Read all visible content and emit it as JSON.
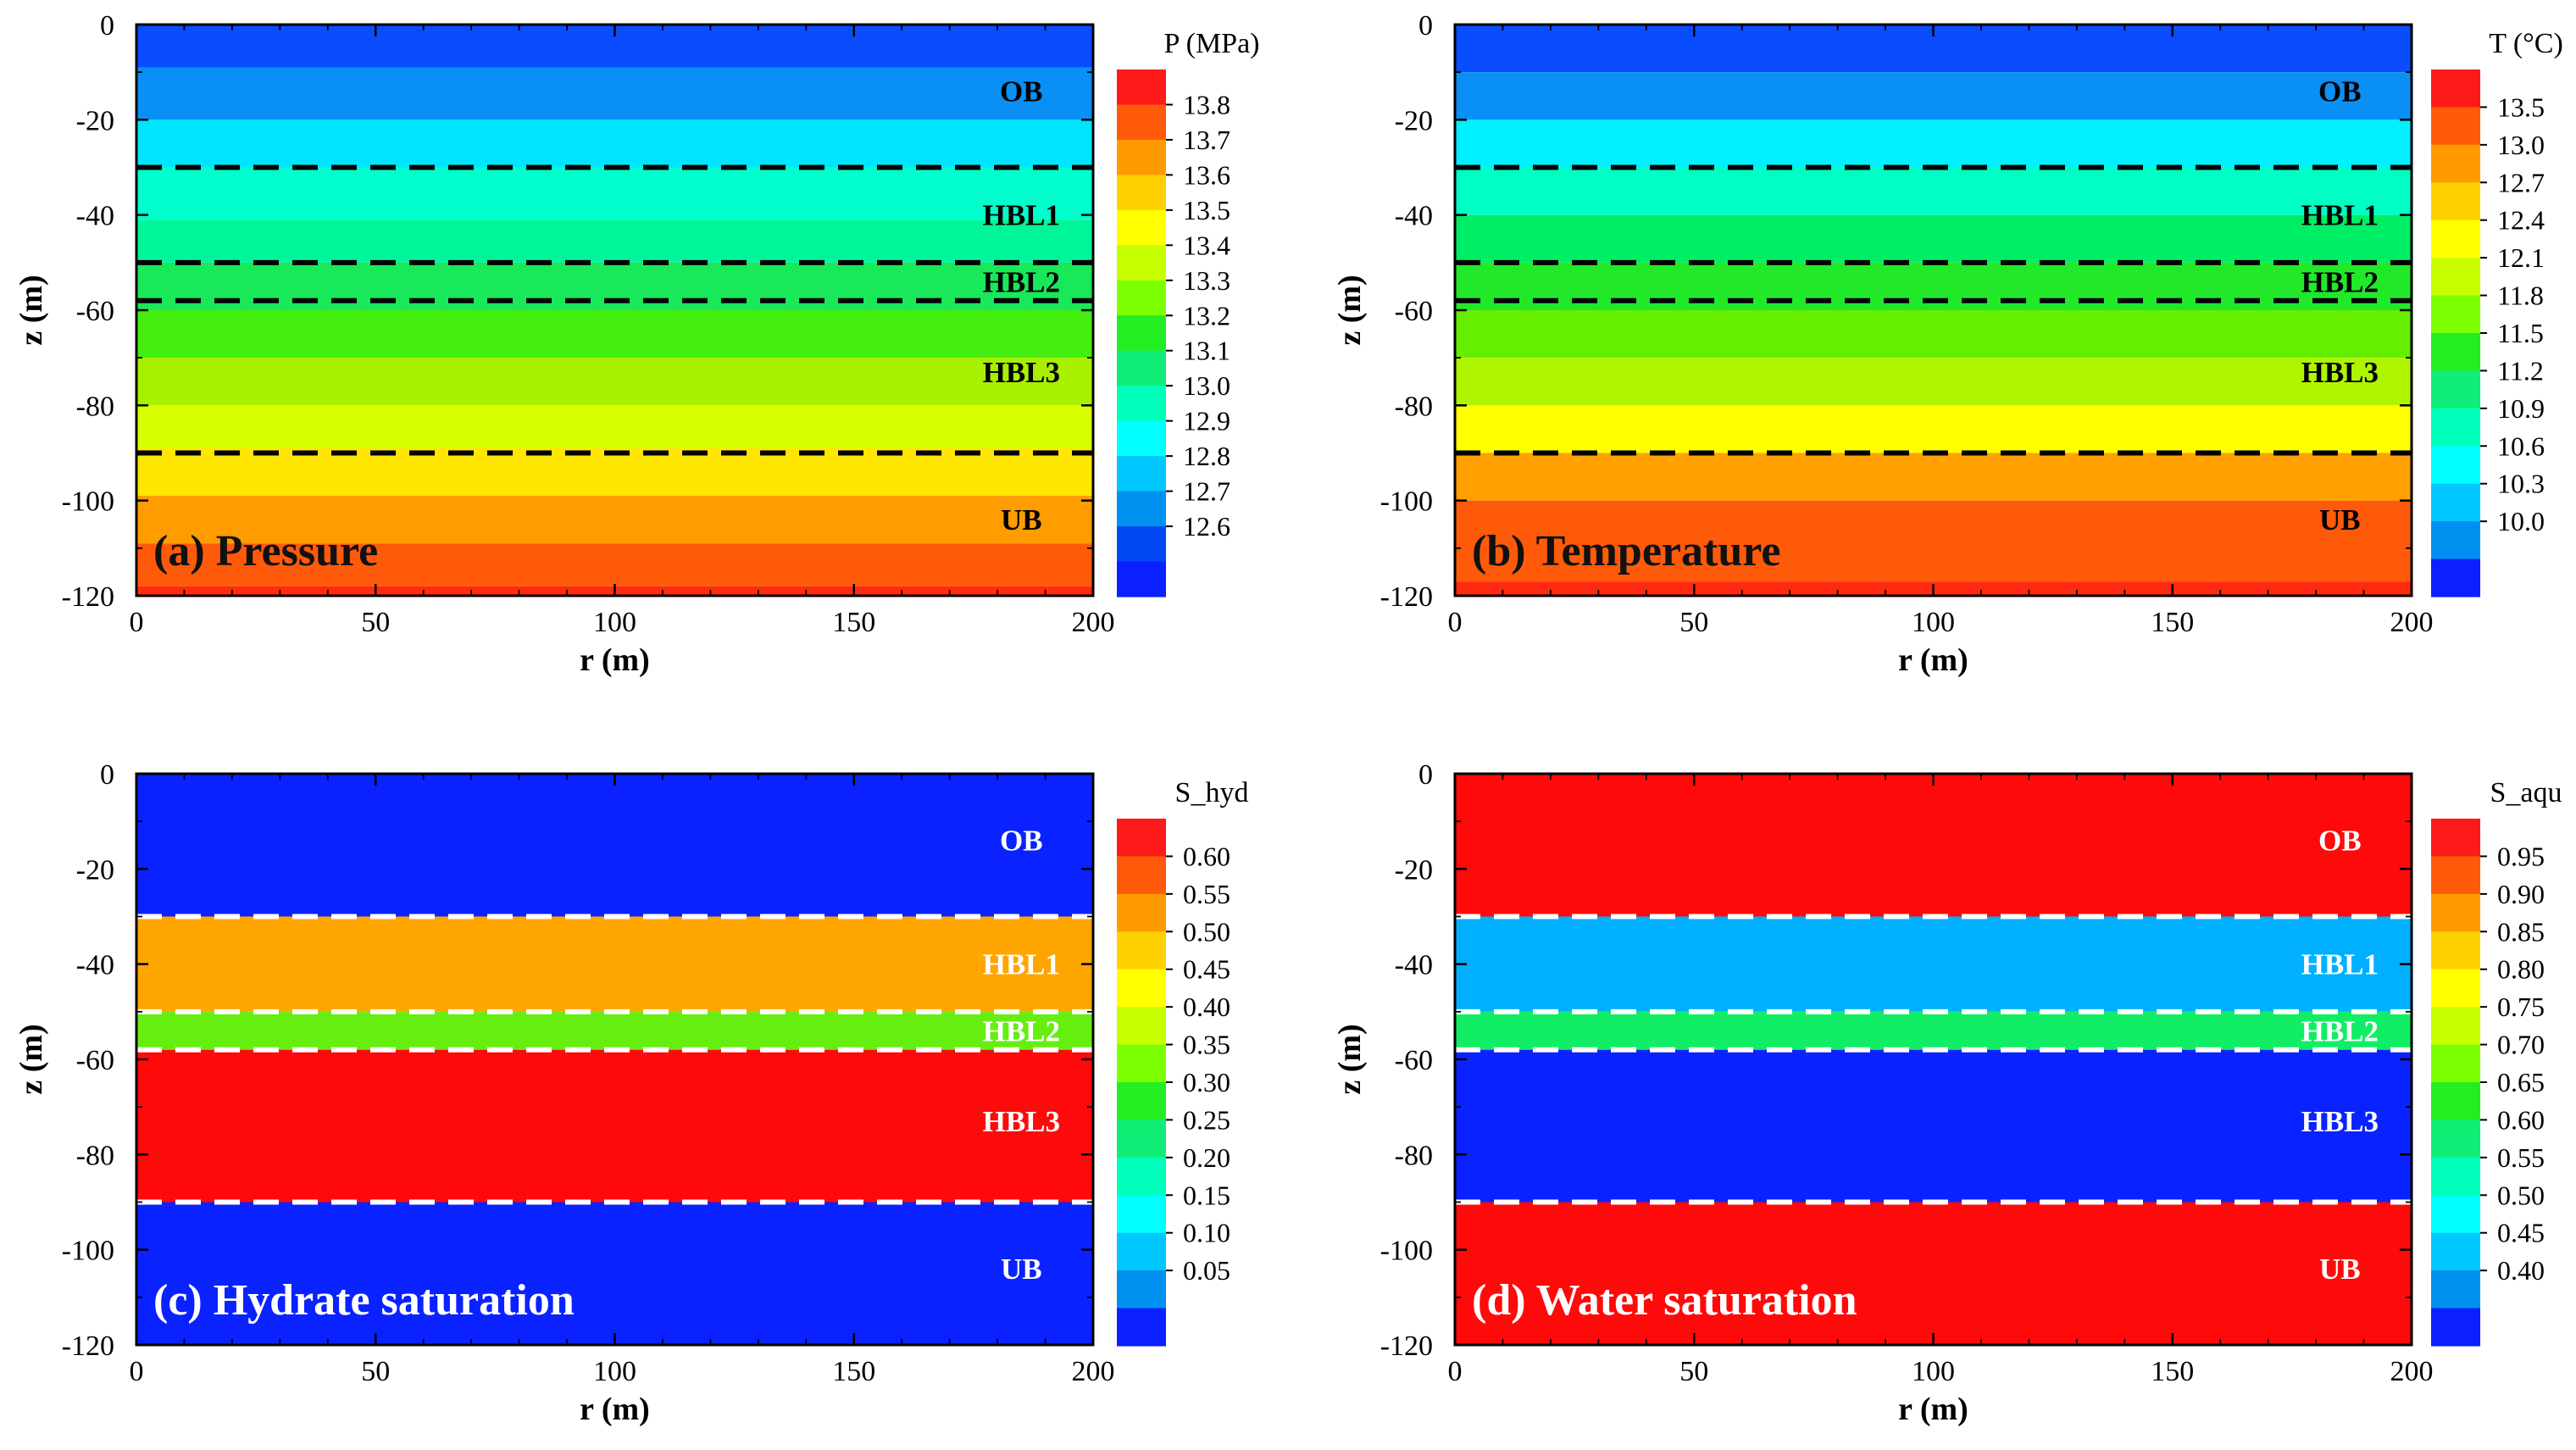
{
  "chart_data": [
    {
      "type": "heatmap",
      "id": "a",
      "title": "(a) Pressure",
      "xlabel": "r (m)",
      "ylabel": "z (m)",
      "xlim": [
        0,
        200
      ],
      "ylim": [
        -120,
        0
      ],
      "xticks": [
        0,
        50,
        100,
        150,
        200
      ],
      "yticks": [
        0,
        -20,
        -40,
        -60,
        -80,
        -100,
        -120
      ],
      "colorbar": {
        "title": "P (MPa)",
        "labels": [
          "13.8",
          "13.7",
          "13.6",
          "13.5",
          "13.4",
          "13.3",
          "13.2",
          "13.1",
          "13.0",
          "12.9",
          "12.8",
          "12.7",
          "12.6"
        ],
        "colors": [
          "#ff1a1a",
          "#ff5a0a",
          "#ff9a00",
          "#ffd000",
          "#ffff00",
          "#c8ff00",
          "#7cff00",
          "#22ee22",
          "#11ee77",
          "#00ffbb",
          "#00ffff",
          "#00c8ff",
          "#0090f0",
          "#0048f0",
          "#0a20ff"
        ]
      },
      "bands": [
        {
          "z_top": 0,
          "z_bottom": -9,
          "color": "#0a4dff"
        },
        {
          "z_top": -9,
          "z_bottom": -20,
          "color": "#0a8ff5"
        },
        {
          "z_top": -20,
          "z_bottom": -30,
          "color": "#00e5ff"
        },
        {
          "z_top": -30,
          "z_bottom": -41,
          "color": "#00ffcc"
        },
        {
          "z_top": -41,
          "z_bottom": -50,
          "color": "#00f59a"
        },
        {
          "z_top": -50,
          "z_bottom": -60,
          "color": "#19e85a"
        },
        {
          "z_top": -60,
          "z_bottom": -70,
          "color": "#44ee11"
        },
        {
          "z_top": -70,
          "z_bottom": -80,
          "color": "#a8f000"
        },
        {
          "z_top": -80,
          "z_bottom": -89,
          "color": "#d8ff00"
        },
        {
          "z_top": -89,
          "z_bottom": -99,
          "color": "#ffe600"
        },
        {
          "z_top": -99,
          "z_bottom": -109,
          "color": "#ff9c00"
        },
        {
          "z_top": -109,
          "z_bottom": -118,
          "color": "#ff5a0a"
        },
        {
          "z_top": -118,
          "z_bottom": -120,
          "color": "#ff2a10"
        }
      ],
      "boundaries": {
        "depths": [
          -30,
          -50,
          -58,
          -90
        ],
        "color": "#000000"
      },
      "layers": {
        "color": "#000000",
        "items": [
          {
            "label": "OB",
            "z": -14
          },
          {
            "label": "HBL1",
            "z": -40
          },
          {
            "label": "HBL2",
            "z": -54
          },
          {
            "label": "HBL3",
            "z": -73
          },
          {
            "label": "UB",
            "z": -104
          }
        ]
      },
      "title_color": "#111111"
    },
    {
      "type": "heatmap",
      "id": "b",
      "title": "(b) Temperature",
      "xlabel": "r (m)",
      "ylabel": "z (m)",
      "xlim": [
        0,
        200
      ],
      "ylim": [
        -120,
        0
      ],
      "xticks": [
        0,
        50,
        100,
        150,
        200
      ],
      "yticks": [
        0,
        -20,
        -40,
        -60,
        -80,
        -100,
        -120
      ],
      "colorbar": {
        "title": "T (°C)",
        "labels": [
          "13.5",
          "13.0",
          "12.7",
          "12.4",
          "12.1",
          "11.8",
          "11.5",
          "11.2",
          "10.9",
          "10.6",
          "10.3",
          "10.0"
        ],
        "colors": [
          "#ff1a1a",
          "#ff5a0a",
          "#ff9a00",
          "#ffd000",
          "#ffff00",
          "#c8ff00",
          "#7cff00",
          "#22ee22",
          "#11ee77",
          "#00ffbb",
          "#00ffff",
          "#00c8ff",
          "#0090f0",
          "#0a20ff"
        ]
      },
      "bands": [
        {
          "z_top": 0,
          "z_bottom": -10,
          "color": "#0a4dff"
        },
        {
          "z_top": -10,
          "z_bottom": -20,
          "color": "#0a8ff5"
        },
        {
          "z_top": -20,
          "z_bottom": -30,
          "color": "#00f0ff"
        },
        {
          "z_top": -30,
          "z_bottom": -40,
          "color": "#00ffc4"
        },
        {
          "z_top": -40,
          "z_bottom": -50,
          "color": "#00ee66"
        },
        {
          "z_top": -50,
          "z_bottom": -60,
          "color": "#22e82a"
        },
        {
          "z_top": -60,
          "z_bottom": -70,
          "color": "#66ee00"
        },
        {
          "z_top": -70,
          "z_bottom": -80,
          "color": "#b0f500"
        },
        {
          "z_top": -80,
          "z_bottom": -90,
          "color": "#ffff00"
        },
        {
          "z_top": -90,
          "z_bottom": -100,
          "color": "#ffa000"
        },
        {
          "z_top": -100,
          "z_bottom": -117,
          "color": "#ff5a0a"
        },
        {
          "z_top": -117,
          "z_bottom": -120,
          "color": "#ff2a10"
        }
      ],
      "boundaries": {
        "depths": [
          -30,
          -50,
          -58,
          -90
        ],
        "color": "#000000"
      },
      "layers": {
        "color": "#000000",
        "items": [
          {
            "label": "OB",
            "z": -14
          },
          {
            "label": "HBL1",
            "z": -40
          },
          {
            "label": "HBL2",
            "z": -54
          },
          {
            "label": "HBL3",
            "z": -73
          },
          {
            "label": "UB",
            "z": -104
          }
        ]
      },
      "title_color": "#111111"
    },
    {
      "type": "heatmap",
      "id": "c",
      "title": "(c) Hydrate saturation",
      "xlabel": "r (m)",
      "ylabel": "z (m)",
      "xlim": [
        0,
        200
      ],
      "ylim": [
        -120,
        0
      ],
      "xticks": [
        0,
        50,
        100,
        150,
        200
      ],
      "yticks": [
        0,
        -20,
        -40,
        -60,
        -80,
        -100,
        -120
      ],
      "colorbar": {
        "title": "S_hyd",
        "labels": [
          "0.60",
          "0.55",
          "0.50",
          "0.45",
          "0.40",
          "0.35",
          "0.30",
          "0.25",
          "0.20",
          "0.15",
          "0.10",
          "0.05"
        ],
        "colors": [
          "#ff1a1a",
          "#ff5a0a",
          "#ff9a00",
          "#ffd000",
          "#ffff00",
          "#c8ff00",
          "#7cff00",
          "#22ee22",
          "#11ee77",
          "#00ffbb",
          "#00ffff",
          "#00c8ff",
          "#0090f0",
          "#0a20ff"
        ]
      },
      "bands": [
        {
          "z_top": 0,
          "z_bottom": -30,
          "color": "#0a22ff"
        },
        {
          "z_top": -30,
          "z_bottom": -50,
          "color": "#ffa500"
        },
        {
          "z_top": -50,
          "z_bottom": -58,
          "color": "#66ee11"
        },
        {
          "z_top": -58,
          "z_bottom": -90,
          "color": "#ff0a0a"
        },
        {
          "z_top": -90,
          "z_bottom": -120,
          "color": "#0a22ff"
        }
      ],
      "boundaries": {
        "depths": [
          -30,
          -50,
          -58,
          -90
        ],
        "color": "#ffffff"
      },
      "layers": {
        "color": "#ffffff",
        "items": [
          {
            "label": "OB",
            "z": -14
          },
          {
            "label": "HBL1",
            "z": -40
          },
          {
            "label": "HBL2",
            "z": -54
          },
          {
            "label": "HBL3",
            "z": -73
          },
          {
            "label": "UB",
            "z": -104
          }
        ]
      },
      "title_color": "#ffffff"
    },
    {
      "type": "heatmap",
      "id": "d",
      "title": "(d) Water saturation",
      "xlabel": "r (m)",
      "ylabel": "z (m)",
      "xlim": [
        0,
        200
      ],
      "ylim": [
        -120,
        0
      ],
      "xticks": [
        0,
        50,
        100,
        150,
        200
      ],
      "yticks": [
        0,
        -20,
        -40,
        -60,
        -80,
        -100,
        -120
      ],
      "colorbar": {
        "title": "S_aqu",
        "labels": [
          "0.95",
          "0.90",
          "0.85",
          "0.80",
          "0.75",
          "0.70",
          "0.65",
          "0.60",
          "0.55",
          "0.50",
          "0.45",
          "0.40"
        ],
        "colors": [
          "#ff1a1a",
          "#ff5a0a",
          "#ff9a00",
          "#ffd000",
          "#ffff00",
          "#c8ff00",
          "#7cff00",
          "#22ee22",
          "#11ee77",
          "#00ffbb",
          "#00ffff",
          "#00c8ff",
          "#0090f0",
          "#0a20ff"
        ]
      },
      "bands": [
        {
          "z_top": 0,
          "z_bottom": -30,
          "color": "#ff0a0a"
        },
        {
          "z_top": -30,
          "z_bottom": -50,
          "color": "#00b0ff"
        },
        {
          "z_top": -50,
          "z_bottom": -58,
          "color": "#11ee66"
        },
        {
          "z_top": -58,
          "z_bottom": -90,
          "color": "#0a22ff"
        },
        {
          "z_top": -90,
          "z_bottom": -120,
          "color": "#ff0a0a"
        }
      ],
      "boundaries": {
        "depths": [
          -30,
          -50,
          -58,
          -90
        ],
        "color": "#ffffff"
      },
      "layers": {
        "color": "#ffffff",
        "items": [
          {
            "label": "OB",
            "z": -14
          },
          {
            "label": "HBL1",
            "z": -40
          },
          {
            "label": "HBL2",
            "z": -54
          },
          {
            "label": "HBL3",
            "z": -73
          },
          {
            "label": "UB",
            "z": -104
          }
        ]
      },
      "title_color": "#ffffff"
    }
  ]
}
